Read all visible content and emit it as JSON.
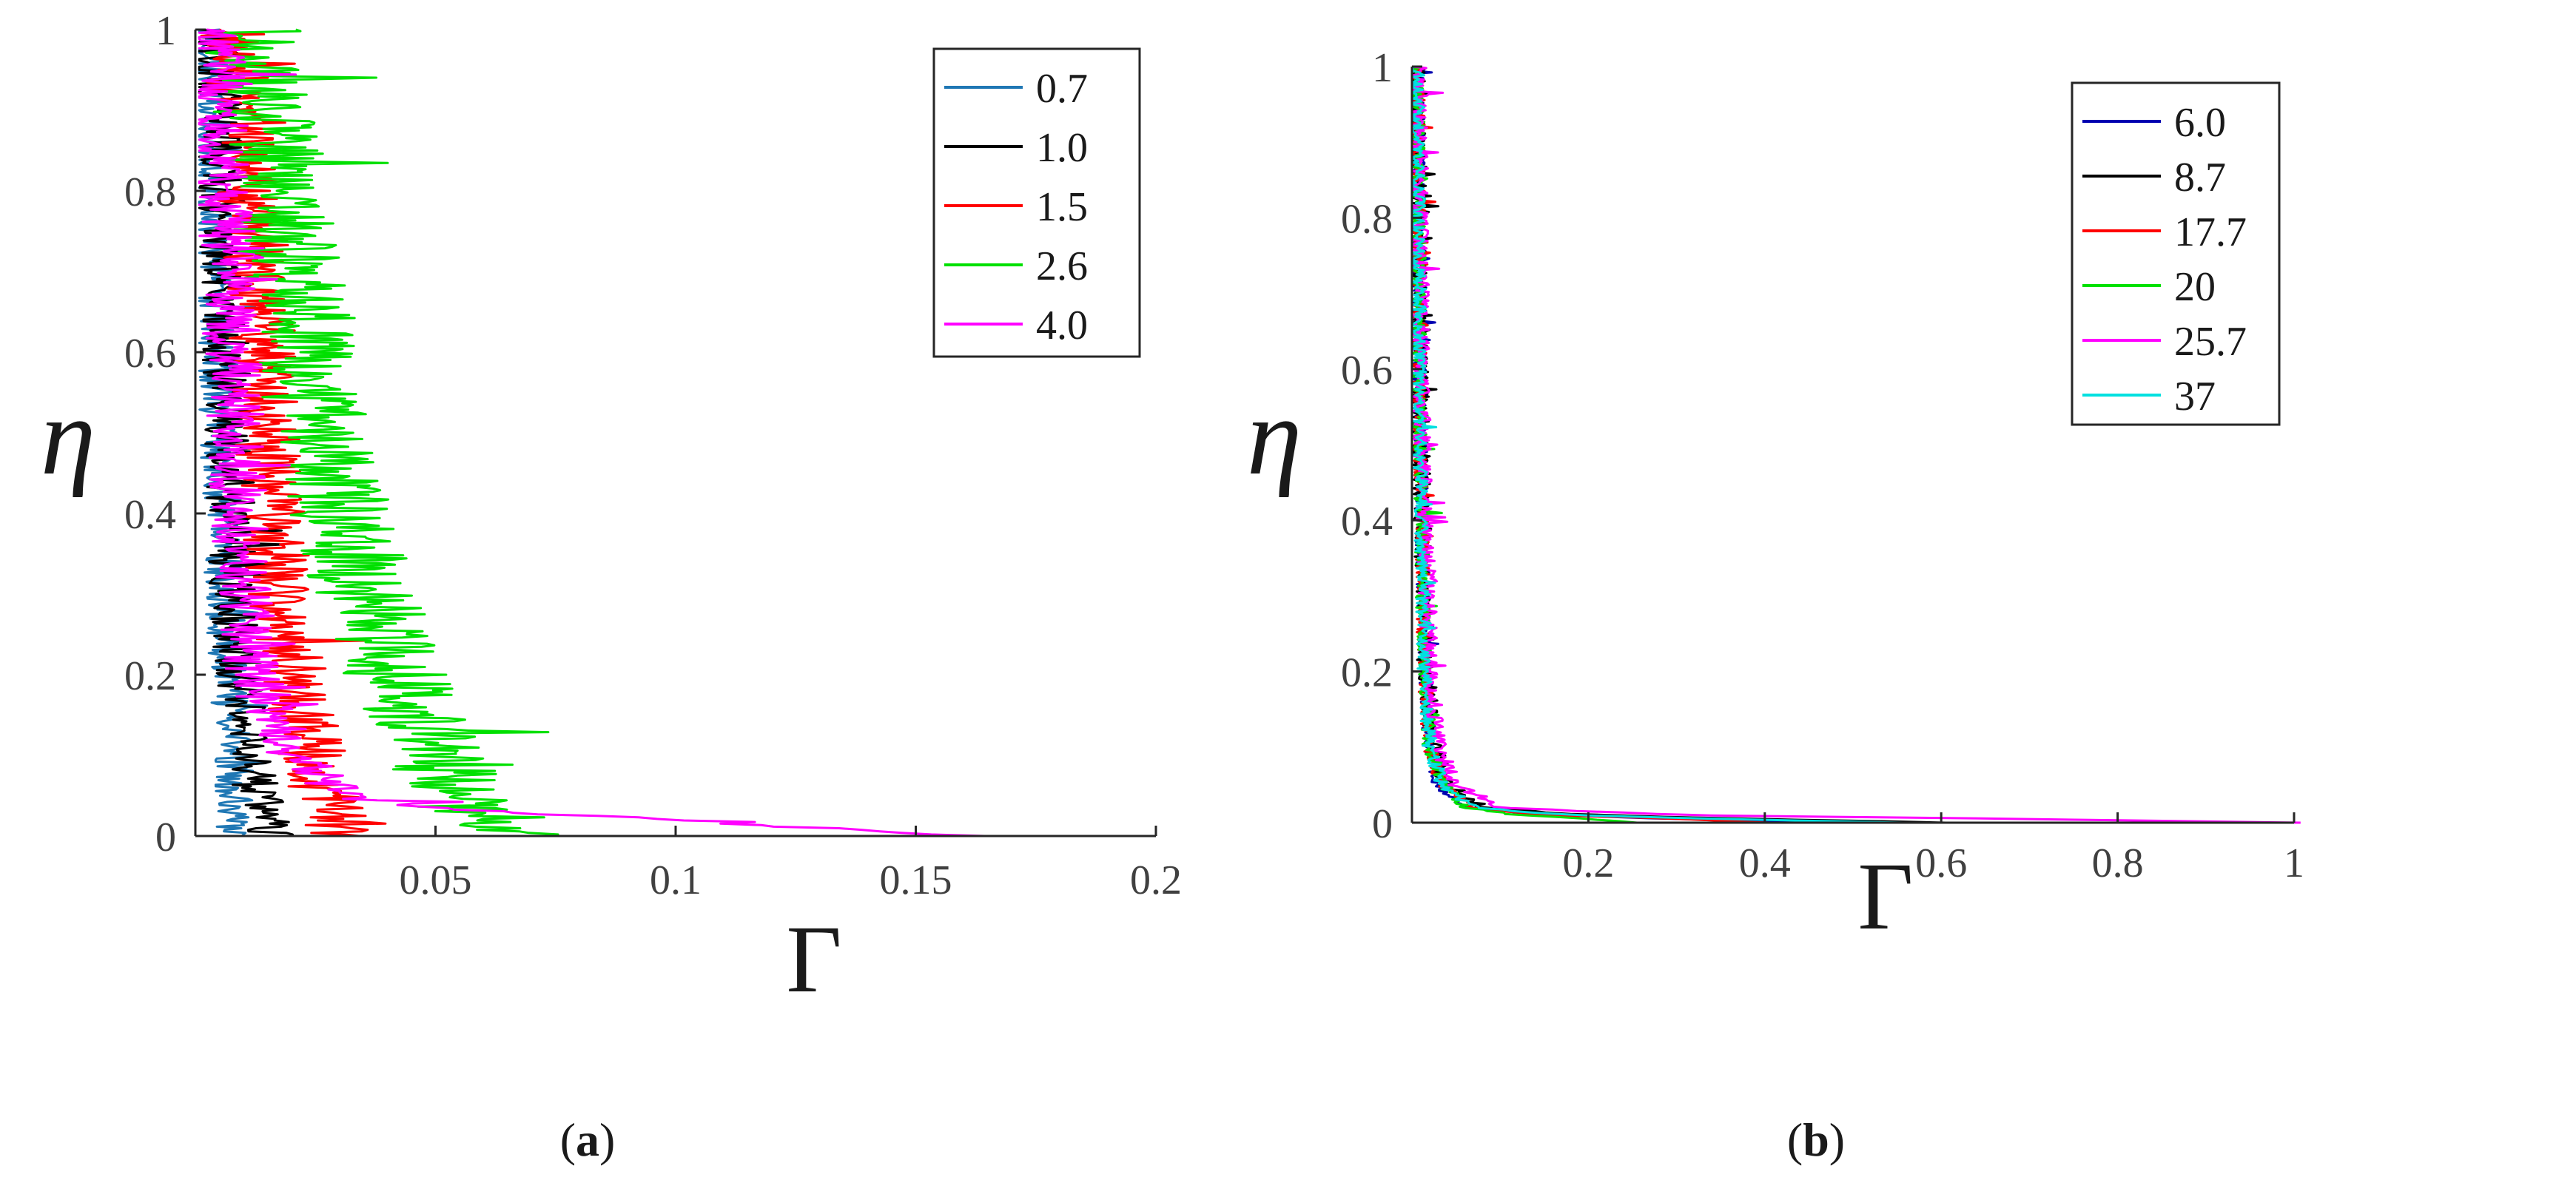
{
  "chart_data": [
    {
      "type": "line",
      "panel": "a",
      "caption": "(a)",
      "caption_open": "(",
      "caption_letter": "a",
      "caption_close": ")",
      "xlabel": "Γ",
      "ylabel": "η",
      "xlim": [
        0,
        0.2
      ],
      "ylim": [
        0,
        1
      ],
      "xticks": [
        0.05,
        0.1,
        0.15,
        0.2
      ],
      "xtick_labels": [
        "0.05",
        "0.1",
        "0.15",
        "0.2"
      ],
      "yticks": [
        0,
        0.2,
        0.4,
        0.6,
        0.8,
        1
      ],
      "ytick_labels": [
        "0",
        "0.2",
        "0.4",
        "0.6",
        "0.8",
        "1"
      ],
      "legend_position": "top-right",
      "series": [
        {
          "name": "0.7",
          "color": "#1f77b4",
          "eta": [
            0.0,
            0.05,
            0.1,
            0.2,
            0.3,
            0.5,
            0.7,
            1.0
          ],
          "gamma": [
            0.008,
            0.008,
            0.008,
            0.007,
            0.006,
            0.005,
            0.004,
            0.003
          ],
          "amp": 0.004
        },
        {
          "name": "1.0",
          "color": "#000000",
          "eta": [
            0.0,
            0.05,
            0.1,
            0.2,
            0.3,
            0.5,
            0.7,
            1.0
          ],
          "gamma": [
            0.016,
            0.013,
            0.011,
            0.009,
            0.008,
            0.007,
            0.006,
            0.004
          ],
          "amp": 0.005
        },
        {
          "name": "1.5",
          "color": "#ff0000",
          "eta": [
            0.0,
            0.05,
            0.1,
            0.2,
            0.3,
            0.5,
            0.7,
            1.0
          ],
          "gamma": [
            0.03,
            0.027,
            0.024,
            0.021,
            0.018,
            0.015,
            0.013,
            0.008
          ],
          "amp": 0.007
        },
        {
          "name": "2.6",
          "color": "#00e000",
          "eta": [
            0.0,
            0.02,
            0.05,
            0.1,
            0.2,
            0.3,
            0.5,
            0.7,
            1.0
          ],
          "gamma": [
            0.065,
            0.06,
            0.055,
            0.05,
            0.042,
            0.035,
            0.026,
            0.02,
            0.012
          ],
          "amp": 0.011
        },
        {
          "name": "4.0",
          "color": "#ff00ff",
          "eta": [
            0.0,
            0.01,
            0.02,
            0.03,
            0.05,
            0.1,
            0.2,
            0.4,
            0.7,
            1.0
          ],
          "gamma": [
            0.16,
            0.13,
            0.1,
            0.06,
            0.03,
            0.02,
            0.012,
            0.009,
            0.007,
            0.004
          ],
          "amp": 0.006
        }
      ]
    },
    {
      "type": "line",
      "panel": "b",
      "caption": "(b)",
      "caption_open": "(",
      "caption_letter": "b",
      "caption_close": ")",
      "xlabel": "Γ",
      "ylabel": "η",
      "xlim": [
        0,
        1
      ],
      "ylim": [
        0,
        1
      ],
      "xticks": [
        0.2,
        0.4,
        0.6,
        0.8,
        1
      ],
      "xtick_labels": [
        "0.2",
        "0.4",
        "0.6",
        "0.8",
        "1"
      ],
      "yticks": [
        0,
        0.2,
        0.4,
        0.6,
        0.8,
        1
      ],
      "ytick_labels": [
        "0",
        "0.2",
        "0.4",
        "0.6",
        "0.8",
        "1"
      ],
      "legend_position": "top-right",
      "series": [
        {
          "name": "6.0",
          "color": "#0000b0",
          "eta": [
            0.0,
            0.005,
            0.01,
            0.02,
            0.05,
            0.1,
            0.2,
            0.5,
            1.0
          ],
          "gamma": [
            0.5,
            0.3,
            0.15,
            0.06,
            0.03,
            0.02,
            0.015,
            0.01,
            0.006
          ],
          "amp": 0.008
        },
        {
          "name": "8.7",
          "color": "#000000",
          "eta": [
            0.0,
            0.005,
            0.01,
            0.02,
            0.05,
            0.1,
            0.2,
            0.5,
            1.0
          ],
          "gamma": [
            0.6,
            0.4,
            0.2,
            0.08,
            0.04,
            0.025,
            0.016,
            0.01,
            0.006
          ],
          "amp": 0.01
        },
        {
          "name": "17.7",
          "color": "#ff0000",
          "eta": [
            0.0,
            0.005,
            0.01,
            0.02,
            0.05,
            0.1,
            0.2,
            0.5,
            1.0
          ],
          "gamma": [
            0.4,
            0.3,
            0.15,
            0.07,
            0.035,
            0.02,
            0.014,
            0.009,
            0.006
          ],
          "amp": 0.008
        },
        {
          "name": "20",
          "color": "#00e000",
          "eta": [
            0.0,
            0.005,
            0.01,
            0.02,
            0.05,
            0.1,
            0.2,
            0.5,
            1.0
          ],
          "gamma": [
            0.25,
            0.2,
            0.12,
            0.06,
            0.035,
            0.02,
            0.014,
            0.009,
            0.006
          ],
          "amp": 0.008
        },
        {
          "name": "25.7",
          "color": "#ff00ff",
          "eta": [
            0.0,
            0.005,
            0.01,
            0.02,
            0.05,
            0.1,
            0.2,
            0.5,
            1.0
          ],
          "gamma": [
            1.0,
            0.7,
            0.3,
            0.1,
            0.05,
            0.03,
            0.02,
            0.012,
            0.007
          ],
          "amp": 0.01
        },
        {
          "name": "37",
          "color": "#00e0e0",
          "eta": [
            0.0,
            0.005,
            0.01,
            0.02,
            0.05,
            0.1,
            0.2,
            0.5,
            1.0
          ],
          "gamma": [
            0.55,
            0.35,
            0.18,
            0.07,
            0.035,
            0.02,
            0.014,
            0.009,
            0.006
          ],
          "amp": 0.008
        }
      ]
    }
  ]
}
